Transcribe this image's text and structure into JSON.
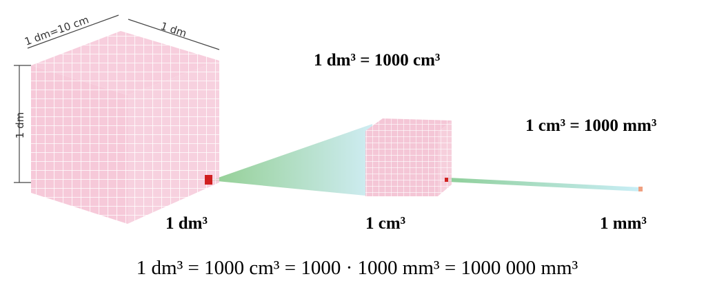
{
  "dimensions": {
    "front_edge": "1 dm=10 cm",
    "side_edge": "1 dm",
    "vertical_edge": "1 dm"
  },
  "equations": [
    "1 dm³ = 1000 cm³",
    "1 cm³ = 1000 mm³"
  ],
  "cube_labels": [
    "1 dm³",
    "1 cm³",
    "1 mm³"
  ],
  "summary": "1 dm³ = 1000 cm³ = 1000 · 1000 mm³ = 1000 000 mm³"
}
